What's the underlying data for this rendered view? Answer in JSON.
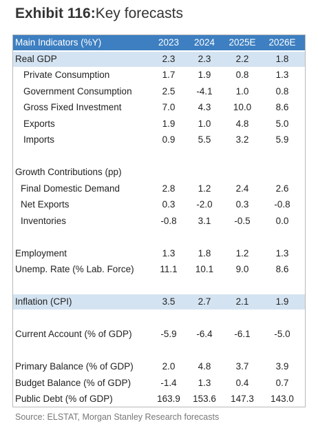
{
  "header": {
    "exhibit": "Exhibit 116:",
    "title": "Key forecasts"
  },
  "table": {
    "columns": [
      "Main Indicators (%Y)",
      "2023",
      "2024",
      "2025E",
      "2026E"
    ],
    "rows": [
      [
        "Real GDP",
        "2.3",
        "2.3",
        "2.2",
        "1.8"
      ],
      [
        "Private Consumption",
        "1.7",
        "1.9",
        "0.8",
        "1.3"
      ],
      [
        "Government Consumption",
        "2.5",
        "-4.1",
        "1.0",
        "0.8"
      ],
      [
        "Gross Fixed Investment",
        "7.0",
        "4.3",
        "10.0",
        "8.6"
      ],
      [
        "Exports",
        "1.9",
        "1.0",
        "4.8",
        "5.0"
      ],
      [
        "Imports",
        "0.9",
        "5.5",
        "3.2",
        "5.9"
      ],
      [
        "Growth Contributions (pp)"
      ],
      [
        "Final Domestic Demand",
        "2.8",
        "1.2",
        "2.4",
        "2.6"
      ],
      [
        "Net Exports",
        "0.3",
        "-2.0",
        "0.3",
        "-0.8"
      ],
      [
        "Inventories",
        "-0.8",
        "3.1",
        "-0.5",
        "0.0"
      ],
      [
        "Employment",
        "1.3",
        "1.8",
        "1.2",
        "1.3"
      ],
      [
        "Unemp. Rate (% Lab. Force)",
        "11.1",
        "10.1",
        "9.0",
        "8.6"
      ],
      [
        "Inflation (CPI)",
        "3.5",
        "2.7",
        "2.1",
        "1.9"
      ],
      [
        "Current Account (% of GDP)",
        "-5.9",
        "-6.4",
        "-6.1",
        "-5.0"
      ],
      [
        "Primary Balance (% of GDP)",
        "2.0",
        "4.8",
        "3.7",
        "3.9"
      ],
      [
        "Budget Balance (% of GDP)",
        "-1.4",
        "1.3",
        "0.4",
        "0.7"
      ],
      [
        "Public Debt (% of GDP)",
        "163.9",
        "153.6",
        "147.3",
        "143.0"
      ]
    ]
  },
  "source": "Source: ELSTAT, Morgan Stanley Research forecasts"
}
